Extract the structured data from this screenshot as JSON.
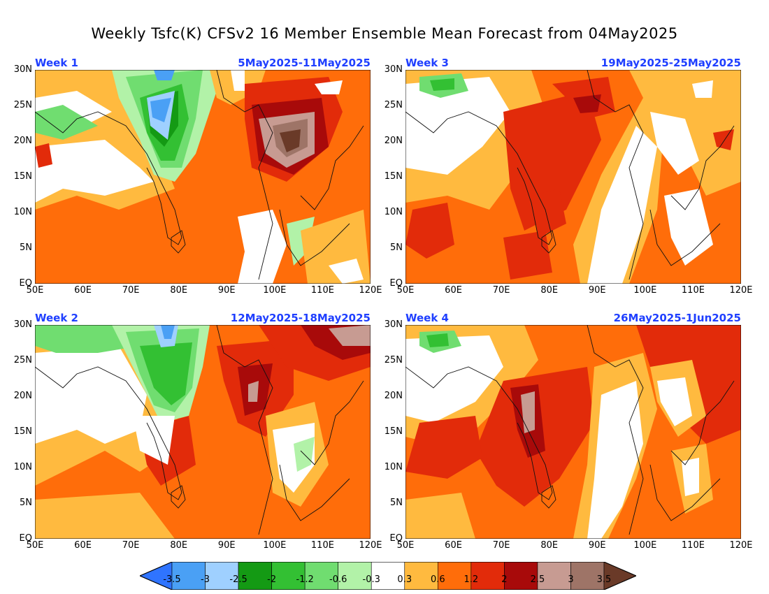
{
  "title": "Weekly Tsfc(K) CFSv2 16 Member Ensemble Mean Forecast from 04May2025",
  "lat_labels": [
    "30N",
    "25N",
    "20N",
    "15N",
    "10N",
    "5N",
    "EQ"
  ],
  "lon_labels": [
    "50E",
    "60E",
    "70E",
    "80E",
    "90E",
    "100E",
    "110E",
    "120E"
  ],
  "panels": [
    {
      "week": "Week 1",
      "dates": "5May2025-11May2025"
    },
    {
      "week": "Week 3",
      "dates": "19May2025-25May2025"
    },
    {
      "week": "Week 2",
      "dates": "12May2025-18May2025"
    },
    {
      "week": "Week 4",
      "dates": "26May2025-1Jun2025"
    }
  ],
  "colorbar": {
    "labels": [
      "-3.5",
      "-3",
      "-2.5",
      "-2",
      "-1.2",
      "-0.6",
      "-0.3",
      "0.3",
      "0.6",
      "1.2",
      "2",
      "2.5",
      "3",
      "3.5"
    ],
    "colors": [
      "#2f74ff",
      "#4aa0f5",
      "#9fd0ff",
      "#149a14",
      "#33c033",
      "#70dd70",
      "#b2f2a8",
      "#ffffff",
      "#ffba3f",
      "#ff6d0a",
      "#e22b0a",
      "#a80a0a",
      "#c79b92",
      "#9e7467",
      "#6a3a28"
    ]
  },
  "map_colors": {
    "white": "#ffffff",
    "lightorange": "#ffba3f",
    "orange": "#ff6d0a",
    "red": "#e22b0a",
    "darkred": "#a80a0a",
    "pinkbrown": "#c79b92",
    "brown": "#9e7467",
    "darkbrown": "#6a3a28",
    "lightgreen": "#b2f2a8",
    "green": "#70dd70",
    "midgreen": "#33c033",
    "darkgreen": "#149a14",
    "lightblue": "#9fd0ff",
    "blue": "#4aa0f5",
    "darkblue": "#2f74ff"
  }
}
